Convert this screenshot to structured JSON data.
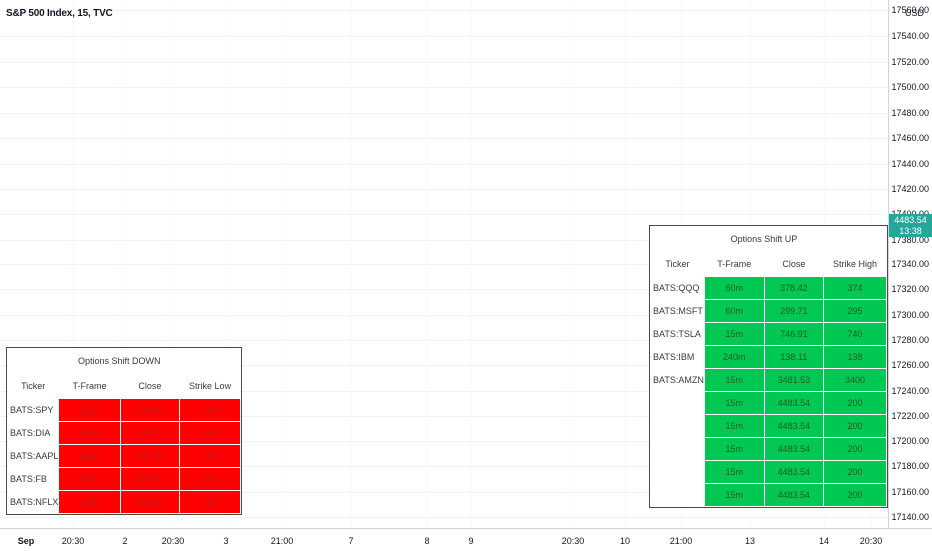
{
  "symbol_title": "S&P 500 Index, 15, TVC",
  "currency": "USD",
  "current_price": "4483.54",
  "countdown": "13:38",
  "price_ticks": [
    "17560.00",
    "17540.00",
    "17520.00",
    "17500.00",
    "17480.00",
    "17460.00",
    "17440.00",
    "17420.00",
    "17400.00",
    "17380.00",
    "17340.00",
    "17320.00",
    "17300.00",
    "17280.00",
    "17260.00",
    "17240.00",
    "17220.00",
    "17200.00",
    "17180.00",
    "17160.00",
    "17140.00"
  ],
  "time_ticks": [
    "Sep",
    "20:30",
    "2",
    "20:30",
    "3",
    "21:00",
    "7",
    "8",
    "9",
    "20:30",
    "10",
    "21:00",
    "13",
    "14",
    "20:30"
  ],
  "table_down": {
    "title": "Options   Shift  DOWN",
    "headers": [
      "Ticker",
      "T-Frame",
      "Close",
      "Strike Low"
    ],
    "rows": [
      {
        "ticker": "BATS:SPY",
        "tf": "15m",
        "close": "448.38",
        "strike": "448"
      },
      {
        "ticker": "BATS:DIA",
        "tf": "60m",
        "close": "348.17",
        "strike": "348"
      },
      {
        "ticker": "BATS:AAPL",
        "tf": "15m",
        "close": "154.30",
        "strike": "154"
      },
      {
        "ticker": "BATS:FB",
        "tf": "60m",
        "close": "377.57",
        "strike": "375"
      },
      {
        "ticker": "BATS:NFLX",
        "tf": "60m",
        "close": "589.29",
        "strike": "585"
      }
    ]
  },
  "table_up": {
    "title": "Options   Shift  UP",
    "headers": [
      "Ticker",
      "T-Frame",
      "Close",
      "Strike High"
    ],
    "rows": [
      {
        "ticker": "BATS:QQQ",
        "tf": "60m",
        "close": "378.42",
        "strike": "374"
      },
      {
        "ticker": "BATS:MSFT",
        "tf": "60m",
        "close": "299.71",
        "strike": "295"
      },
      {
        "ticker": "BATS:TSLA",
        "tf": "15m",
        "close": "746.91",
        "strike": "740"
      },
      {
        "ticker": "BATS:IBM",
        "tf": "240m",
        "close": "138.11",
        "strike": "138"
      },
      {
        "ticker": "BATS:AMZN",
        "tf": "15m",
        "close": "3481.53",
        "strike": "3400"
      },
      {
        "ticker": "",
        "tf": "15m",
        "close": "4483.54",
        "strike": "200"
      },
      {
        "ticker": "",
        "tf": "15m",
        "close": "4483.54",
        "strike": "200"
      },
      {
        "ticker": "",
        "tf": "15m",
        "close": "4483.54",
        "strike": "200"
      },
      {
        "ticker": "",
        "tf": "15m",
        "close": "4483.54",
        "strike": "200"
      },
      {
        "ticker": "",
        "tf": "15m",
        "close": "4483.54",
        "strike": "200"
      }
    ]
  },
  "colors": {
    "down_cell": "#ff0000",
    "up_cell": "#00c853",
    "price_tag": "#26a69a"
  }
}
